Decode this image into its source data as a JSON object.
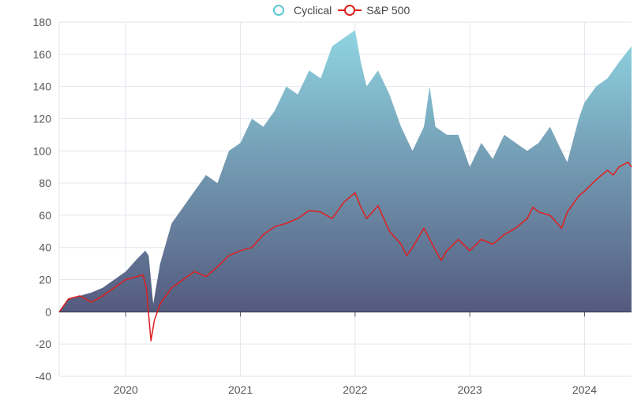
{
  "chart_data": {
    "type": "area",
    "title": "",
    "xlabel": "",
    "ylabel": "",
    "ylim": [
      -40,
      180
    ],
    "xlim": [
      2019.42,
      2024.41
    ],
    "yticks": [
      "-40",
      "-20",
      "0",
      "20",
      "40",
      "60",
      "80",
      "100",
      "120",
      "140",
      "160",
      "180"
    ],
    "xticks": [
      "2020",
      "2021",
      "2022",
      "2023",
      "2024"
    ],
    "grid": true,
    "legend_position": "top-center",
    "legend": [
      "Cyclical",
      "S&P 500"
    ],
    "colors": {
      "cyclical_top": "#8fd5e2",
      "cyclical_bottom": "#545a7e",
      "cyclical_marker": "#5cc8d4",
      "sp500": "#e01e1e"
    },
    "series": [
      {
        "name": "Cyclical",
        "type": "area",
        "x": [
          2019.42,
          2019.5,
          2019.6,
          2019.7,
          2019.8,
          2019.9,
          2020.0,
          2020.1,
          2020.17,
          2020.2,
          2020.22,
          2020.24,
          2020.3,
          2020.4,
          2020.5,
          2020.6,
          2020.7,
          2020.8,
          2020.9,
          2021.0,
          2021.1,
          2021.2,
          2021.3,
          2021.4,
          2021.5,
          2021.6,
          2021.7,
          2021.8,
          2021.9,
          2022.0,
          2022.05,
          2022.1,
          2022.2,
          2022.3,
          2022.4,
          2022.5,
          2022.6,
          2022.65,
          2022.7,
          2022.8,
          2022.9,
          2023.0,
          2023.1,
          2023.2,
          2023.3,
          2023.4,
          2023.5,
          2023.6,
          2023.7,
          2023.8,
          2023.85,
          2023.95,
          2024.0,
          2024.1,
          2024.2,
          2024.3,
          2024.41
        ],
        "y": [
          0,
          8,
          10,
          12,
          15,
          20,
          25,
          33,
          38,
          35,
          20,
          5,
          30,
          55,
          65,
          75,
          85,
          80,
          100,
          105,
          120,
          115,
          125,
          140,
          135,
          150,
          145,
          165,
          170,
          175,
          155,
          140,
          150,
          135,
          115,
          100,
          115,
          140,
          115,
          110,
          110,
          90,
          105,
          95,
          110,
          105,
          100,
          105,
          115,
          100,
          93,
          120,
          130,
          140,
          145,
          155,
          165
        ]
      },
      {
        "name": "S&P 500",
        "type": "line",
        "x": [
          2019.42,
          2019.5,
          2019.6,
          2019.7,
          2019.8,
          2019.9,
          2020.0,
          2020.1,
          2020.15,
          2020.18,
          2020.22,
          2020.25,
          2020.3,
          2020.4,
          2020.5,
          2020.6,
          2020.7,
          2020.8,
          2020.9,
          2021.0,
          2021.1,
          2021.2,
          2021.3,
          2021.4,
          2021.5,
          2021.6,
          2021.7,
          2021.8,
          2021.9,
          2022.0,
          2022.05,
          2022.1,
          2022.2,
          2022.3,
          2022.4,
          2022.45,
          2022.5,
          2022.6,
          2022.65,
          2022.75,
          2022.8,
          2022.9,
          2023.0,
          2023.1,
          2023.2,
          2023.3,
          2023.4,
          2023.5,
          2023.55,
          2023.6,
          2023.7,
          2023.8,
          2023.85,
          2023.95,
          2024.0,
          2024.1,
          2024.2,
          2024.25,
          2024.3,
          2024.38,
          2024.41
        ],
        "y": [
          0,
          8,
          10,
          6,
          10,
          15,
          20,
          22,
          23,
          15,
          -18,
          -5,
          5,
          15,
          20,
          25,
          22,
          28,
          35,
          38,
          40,
          48,
          53,
          55,
          58,
          63,
          62,
          58,
          68,
          74,
          65,
          58,
          66,
          50,
          42,
          35,
          40,
          52,
          45,
          32,
          38,
          45,
          38,
          45,
          42,
          48,
          52,
          58,
          65,
          62,
          60,
          52,
          62,
          72,
          75,
          82,
          88,
          85,
          90,
          93,
          90
        ]
      }
    ]
  }
}
